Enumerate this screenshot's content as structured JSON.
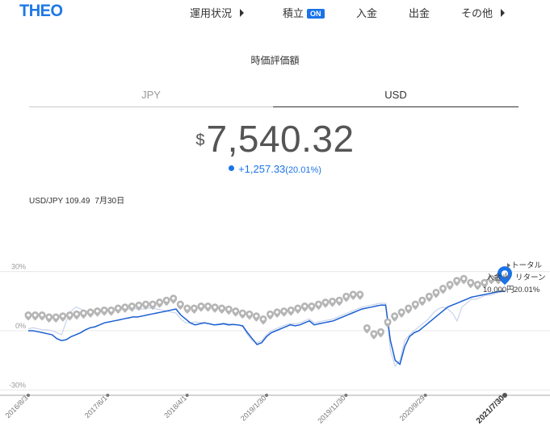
{
  "header": {
    "logo": "THEO",
    "nav": [
      {
        "label": "運用状況",
        "has_arrow": true
      },
      {
        "label": "積立",
        "badge": "ON"
      },
      {
        "label": "入金"
      },
      {
        "label": "出金"
      },
      {
        "label": "その他",
        "has_arrow": true
      }
    ]
  },
  "section_title": "時価評価額",
  "tabs": [
    {
      "label": "JPY",
      "active": false
    },
    {
      "label": "USD",
      "active": true
    }
  ],
  "valuation": {
    "currency_symbol": "$",
    "amount": "7,540.32",
    "change": "+1,257.33",
    "change_pct": "(20.01%)"
  },
  "fx": {
    "pair_rate": "USD/JPY 109.49",
    "date": "7月30日"
  },
  "colors": {
    "accent": "#1a73e8",
    "series_line": "#1a5fd1",
    "benchmark_line": "#c8d3ec",
    "marker": "#b5b5b5"
  },
  "chart_data": {
    "type": "line",
    "y_ticks": [
      "30%",
      "0%",
      "-30%"
    ],
    "ylim": [
      -45,
      45
    ],
    "x_ticks": [
      "2016/8/3",
      "2017/6/1",
      "2018/4/1",
      "2019/1/30",
      "2019/11/30",
      "2020/9/29",
      "2021/7/30"
    ],
    "x_highlight": "2021/7/30",
    "grid": true,
    "series": [
      {
        "values": [
          0,
          0,
          -0.5,
          -1,
          -1.5,
          -2,
          -4,
          -5,
          -4.5,
          -3,
          -2,
          -1,
          0.5,
          1.5,
          2,
          3,
          4,
          4.5,
          5,
          5.5,
          6,
          6.5,
          7,
          7,
          7.5,
          8,
          8.5,
          9,
          9.5,
          10,
          10.5,
          11,
          8,
          6,
          4,
          3,
          3.5,
          4,
          3.5,
          3,
          3.2,
          3.5,
          3,
          3.2,
          3,
          2.5,
          -1,
          -4,
          -7,
          -6,
          -3,
          -1,
          0,
          1,
          2,
          3,
          2.5,
          3,
          4,
          5,
          3,
          3.5,
          4,
          4.5,
          5,
          6,
          7,
          8,
          9,
          10,
          11,
          11.5,
          12,
          12.5,
          13,
          13,
          -5,
          -15,
          -17,
          -8,
          -3,
          -1,
          0,
          2,
          4,
          6,
          8,
          10,
          12,
          13,
          14,
          15,
          16,
          17,
          17.5,
          18,
          18.5,
          19,
          19.5,
          20,
          20
        ]
      },
      {
        "values": [
          1,
          1.5,
          1,
          0.5,
          0.5,
          0,
          -1,
          -2,
          5,
          10,
          12,
          11,
          10,
          9,
          9,
          9.5,
          10,
          10,
          10.5,
          10.5,
          11,
          11,
          11.5,
          11,
          11,
          11.5,
          11.5,
          11,
          10.5,
          10,
          9.5,
          9,
          6,
          4,
          4,
          4.5,
          4.2,
          4,
          3.5,
          3,
          3.5,
          4,
          3.5,
          3.2,
          3,
          2,
          -2,
          -5,
          -6,
          -5,
          -2,
          0,
          1,
          2,
          3,
          3.5,
          3.5,
          4,
          5,
          6,
          4,
          4.5,
          5,
          5.5,
          6,
          7,
          8,
          9,
          10,
          11,
          12,
          12.5,
          13,
          13.5,
          14,
          14,
          -10,
          -18,
          -15,
          -5,
          -2,
          0,
          2,
          4,
          6,
          9,
          11,
          12,
          11,
          9,
          5,
          12,
          14,
          16,
          16,
          17,
          18,
          18,
          19,
          19.5,
          20
        ]
      }
    ],
    "deposit_markers": [
      5.5,
      5.5,
      5.5,
      4.5,
      4.5,
      5,
      5.5,
      6,
      6.5,
      7,
      7.5,
      8,
      8,
      9,
      9.5,
      10,
      10.5,
      11,
      11,
      12,
      13,
      14,
      11,
      9,
      9,
      10,
      10,
      9.5,
      9,
      8.5,
      7.5,
      6.5,
      6,
      5,
      3.5,
      6,
      7,
      7.5,
      8,
      9,
      10,
      10,
      11,
      12,
      12.5,
      13,
      15,
      16,
      16,
      -1,
      -4,
      -3,
      2,
      5,
      7,
      9,
      11,
      13,
      15,
      17,
      19,
      21,
      23,
      24,
      22,
      21,
      22,
      24,
      24
    ],
    "annotations": [
      {
        "text": "トータル",
        "color": "#333"
      },
      {
        "text": "リターン",
        "color": "#333"
      },
      {
        "text": "入金",
        "color": "#333"
      },
      {
        "text": "10,000円",
        "color": "#333"
      },
      {
        "text": "20.01%",
        "color": "#333"
      }
    ]
  }
}
